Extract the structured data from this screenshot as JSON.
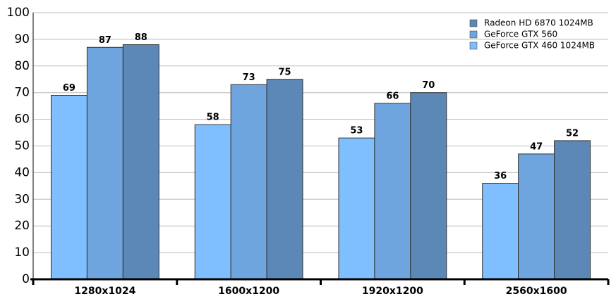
{
  "chart_data": {
    "type": "bar",
    "categories": [
      "1280x1024",
      "1600x1200",
      "1920x1200",
      "2560x1600"
    ],
    "series": [
      {
        "name": "GeForce GTX 460 1024MB",
        "color": "#80bfff",
        "values": [
          69,
          58,
          53,
          36
        ]
      },
      {
        "name": "GeForce GTX 560",
        "color": "#6fa5de",
        "values": [
          87,
          73,
          66,
          47
        ]
      },
      {
        "name": "Radeon HD 6870 1024MB",
        "color": "#5b88b6",
        "values": [
          88,
          75,
          70,
          52
        ]
      }
    ],
    "ylim": [
      0,
      100
    ],
    "yticks": [
      0,
      10,
      20,
      30,
      40,
      50,
      60,
      70,
      80,
      90,
      100
    ],
    "grid": true,
    "legend": "top-right"
  }
}
